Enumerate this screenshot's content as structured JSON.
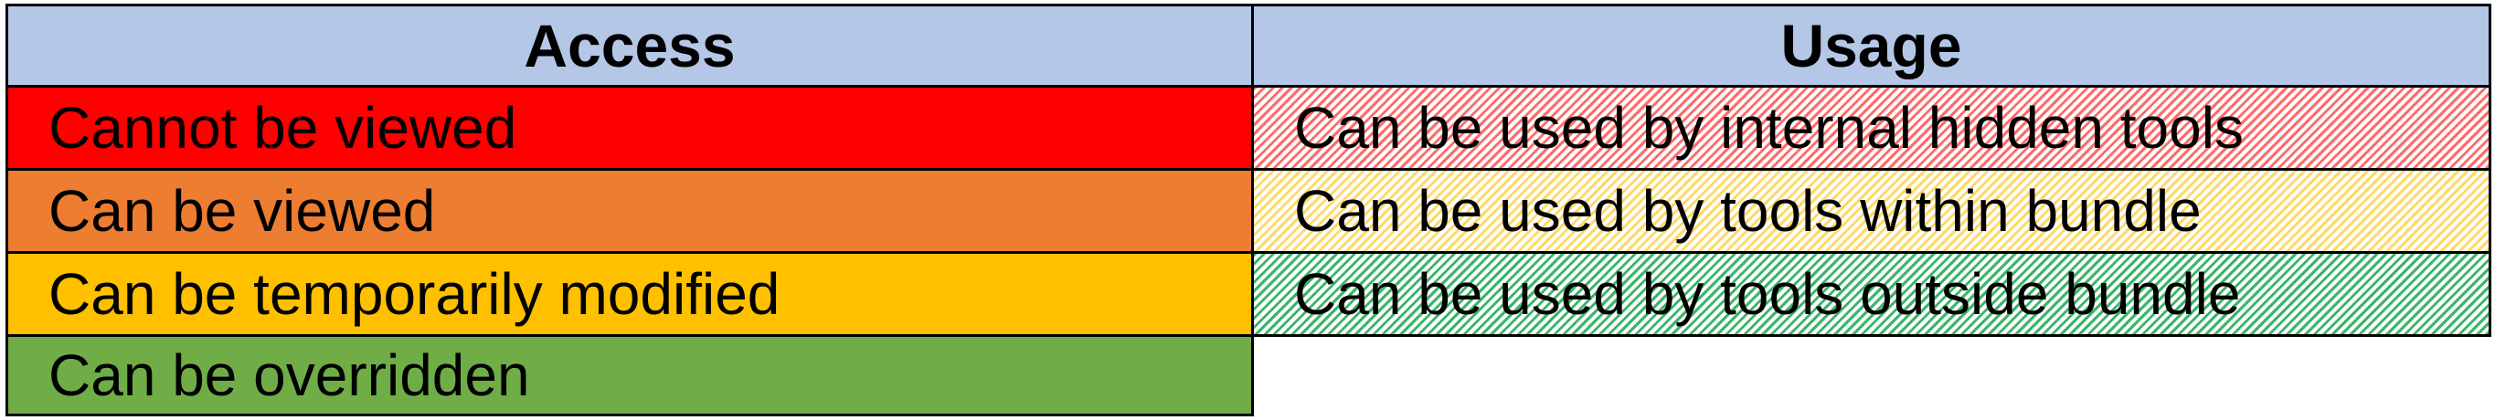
{
  "access": {
    "header": "Access",
    "items": [
      {
        "label": "Cannot be viewed",
        "color": "#ff0000"
      },
      {
        "label": "Can be viewed",
        "color": "#ed7d31"
      },
      {
        "label": "Can be temporarily modified",
        "color": "#ffc000"
      },
      {
        "label": "Can be overridden",
        "color": "#70ad47"
      }
    ]
  },
  "usage": {
    "header": "Usage",
    "items": [
      {
        "label": "Can be used by internal hidden tools",
        "color": "#ff6a6a",
        "pattern": "diagonal-hatch"
      },
      {
        "label": "Can be used by tools within bundle",
        "color": "#ffd966",
        "pattern": "diagonal-hatch"
      },
      {
        "label": "Can be used by tools outside bundle",
        "color": "#3bb56a",
        "pattern": "diagonal-hatch"
      }
    ]
  },
  "colors": {
    "header_bg": "#b4c7e7",
    "border": "#000000"
  }
}
